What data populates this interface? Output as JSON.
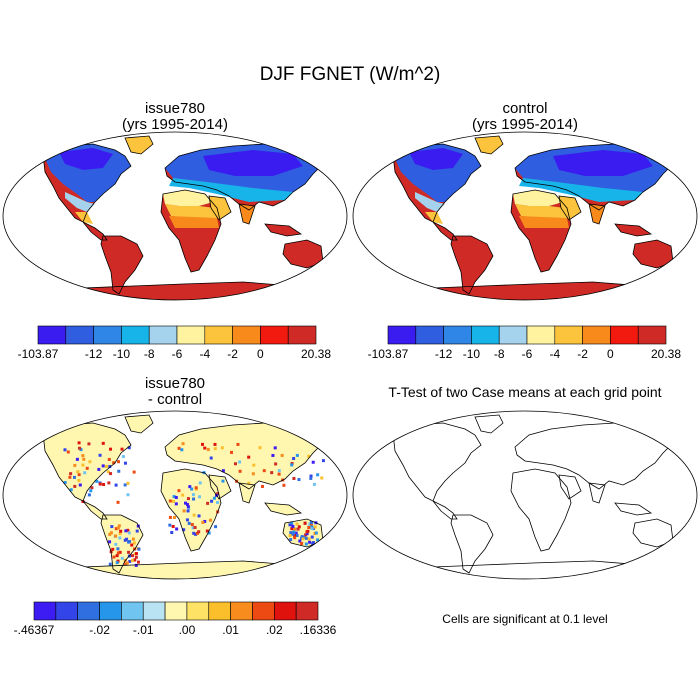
{
  "title": "DJF FGNET (W/m^2)",
  "panels": [
    {
      "name": "issue780",
      "title_line1": "issue780",
      "title_line2": "(yrs 1995-2014)"
    },
    {
      "name": "control",
      "title_line1": "control",
      "title_line2": "(yrs 1995-2014)"
    },
    {
      "name": "difference",
      "title_line1": "issue780",
      "title_line2": "- control"
    },
    {
      "name": "ttest",
      "title_line1": "T-Test of two Case means at each grid point",
      "title_line2": ""
    }
  ],
  "colorbars": {
    "main": {
      "colors": [
        "#3a1cf0",
        "#2f5fe0",
        "#2f86e6",
        "#17b4ea",
        "#a5d2ec",
        "#fff3a0",
        "#fcc43c",
        "#f88a1c",
        "#f21a0e",
        "#cf2a26"
      ],
      "labels": [
        "-103.87",
        "-12",
        "-10",
        "-8",
        "-6",
        "-4",
        "-2",
        "0",
        "20.38"
      ]
    },
    "diff": {
      "colors": [
        "#3c1cf2",
        "#3345e8",
        "#2f6fe0",
        "#2596ea",
        "#6fc4f0",
        "#b9e2f3",
        "#fff7b0",
        "#fde266",
        "#fcbf2c",
        "#f88c1c",
        "#ec4a12",
        "#e0120e",
        "#cf2a26"
      ],
      "labels": [
        "-.46367",
        "-.02",
        "-.01",
        ".00",
        ".01",
        ".02",
        ".16336"
      ]
    }
  },
  "significance_note": "Cells are significant at 0.1 level"
}
